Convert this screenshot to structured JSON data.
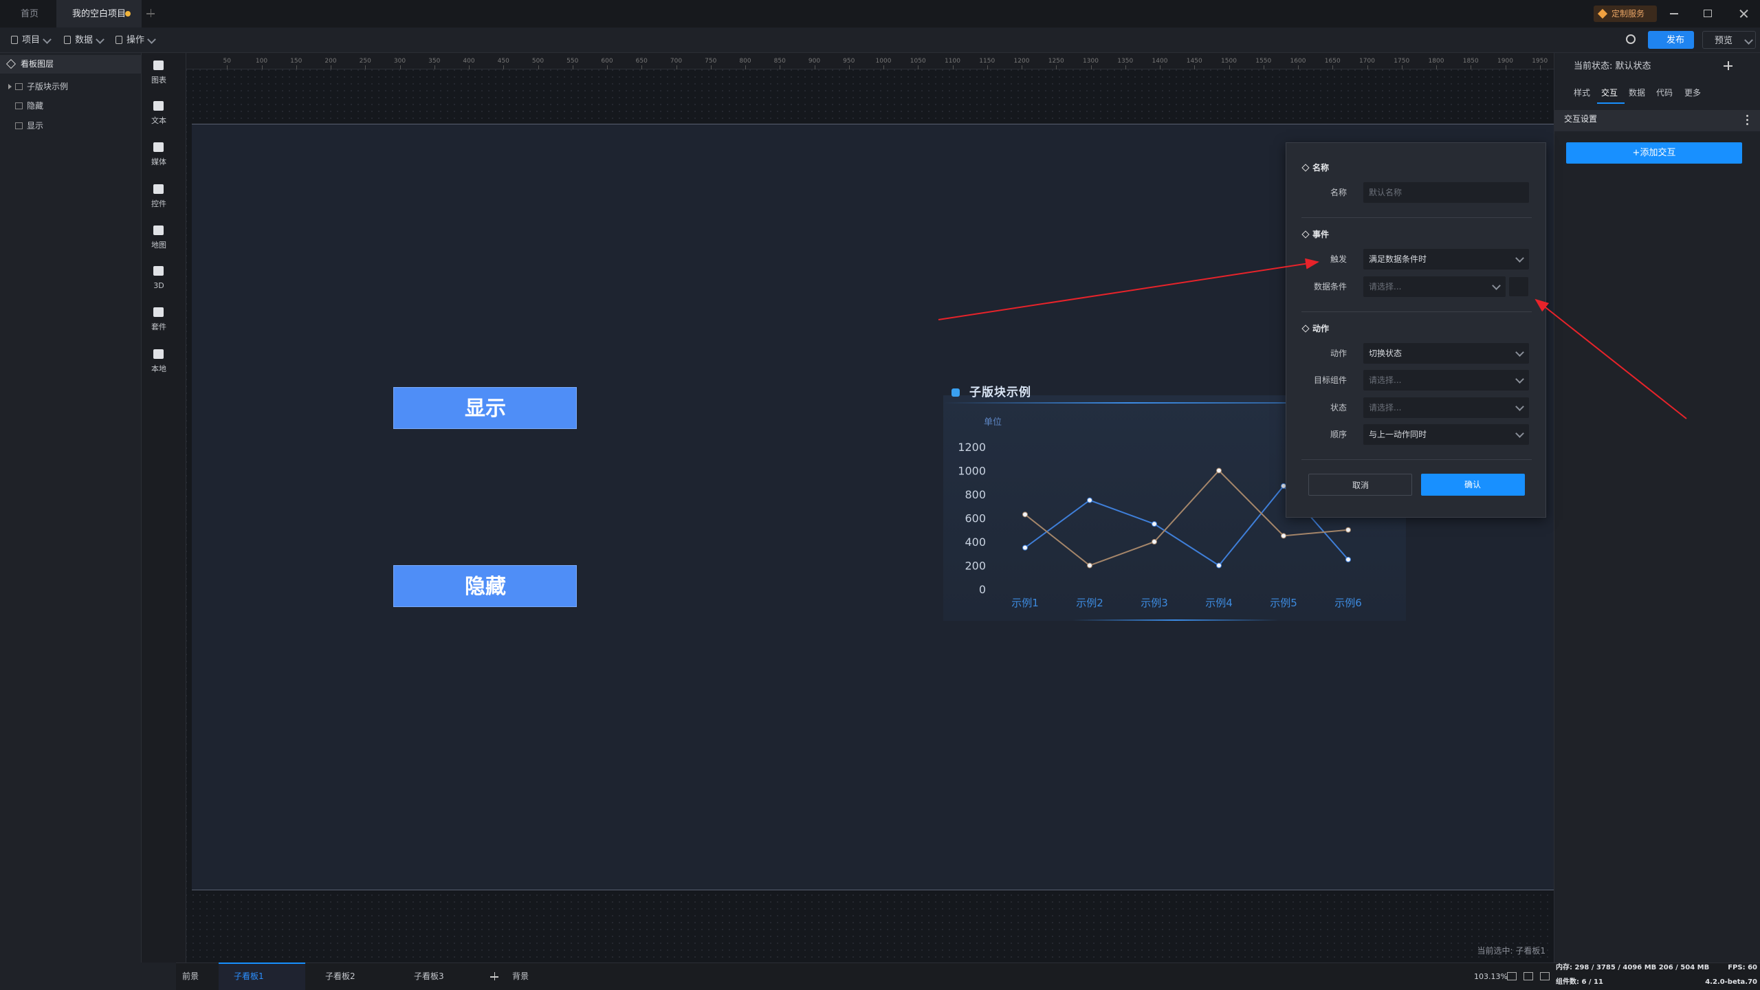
{
  "window": {
    "tabs": [
      "首页",
      "我的空白项目"
    ],
    "service": "定制服务"
  },
  "toolbar": {
    "menus": [
      "项目",
      "数据",
      "操作"
    ],
    "publish": "发布",
    "preview": "预览"
  },
  "layers": {
    "title": "看板图层",
    "items": [
      "子版块示例",
      "隐藏",
      "显示"
    ]
  },
  "components": [
    "图表",
    "文本",
    "媒体",
    "控件",
    "地图",
    "3D",
    "套件",
    "本地"
  ],
  "canvas": {
    "ruler_ticks": [
      50,
      100,
      150,
      200,
      250,
      300,
      350,
      400,
      450,
      500,
      550,
      600,
      650,
      700,
      750,
      800,
      850,
      900,
      950,
      1000,
      1050,
      1100,
      1150,
      1200,
      1250,
      1300,
      1350,
      1400,
      1450,
      1500,
      1550,
      1600,
      1650,
      1700,
      1750,
      1800,
      1850,
      1900,
      1950
    ],
    "buttons": [
      "显示",
      "隐藏"
    ],
    "selection": "当前选中: 子看板1"
  },
  "chart_data": {
    "type": "line",
    "title": "子版块示例",
    "y_label": "单位",
    "categories": [
      "示例1",
      "示例2",
      "示例3",
      "示例4",
      "示例5",
      "示例6"
    ],
    "series": [
      {
        "color": "#3f7fd9",
        "values": [
          350,
          750,
          550,
          200,
          870,
          250
        ]
      },
      {
        "color": "#a5866a",
        "values": [
          630,
          200,
          400,
          1000,
          450,
          500
        ]
      }
    ],
    "ylim": [
      0,
      1200
    ],
    "yticks": [
      0,
      200,
      400,
      600,
      800,
      1000,
      1200
    ]
  },
  "dialog": {
    "sections": [
      {
        "title": "名称",
        "fields": [
          {
            "label": "名称",
            "placeholder": "默认名称"
          }
        ]
      },
      {
        "title": "事件",
        "fields": [
          {
            "label": "触发",
            "value": "满足数据条件时"
          },
          {
            "label": "数据条件",
            "placeholder": "请选择..."
          }
        ]
      },
      {
        "title": "动作",
        "fields": [
          {
            "label": "动作",
            "value": "切换状态"
          },
          {
            "label": "目标组件",
            "placeholder": "请选择..."
          },
          {
            "label": "状态",
            "placeholder": "请选择..."
          },
          {
            "label": "顺序",
            "value": "与上一动作同时"
          }
        ]
      }
    ],
    "cancel": "取消",
    "confirm": "确认"
  },
  "inspector": {
    "state": "当前状态: 默认状态",
    "tabs": [
      "样式",
      "交互",
      "数据",
      "代码",
      "更多"
    ],
    "active_tab": 1,
    "section": "交互设置",
    "add": "+添加交互"
  },
  "statusbar": {
    "tabs": [
      "前景",
      "子看板1",
      "子看板2",
      "子看板3",
      "背景"
    ],
    "active_tab": 1,
    "zoom": "103.13%",
    "memory": "内存: 298 / 3785 / 4096 MB 206 / 504 MB",
    "fps": "FPS: 60",
    "count": "组件数: 6 / 11",
    "version": "4.2.0-beta.70"
  }
}
